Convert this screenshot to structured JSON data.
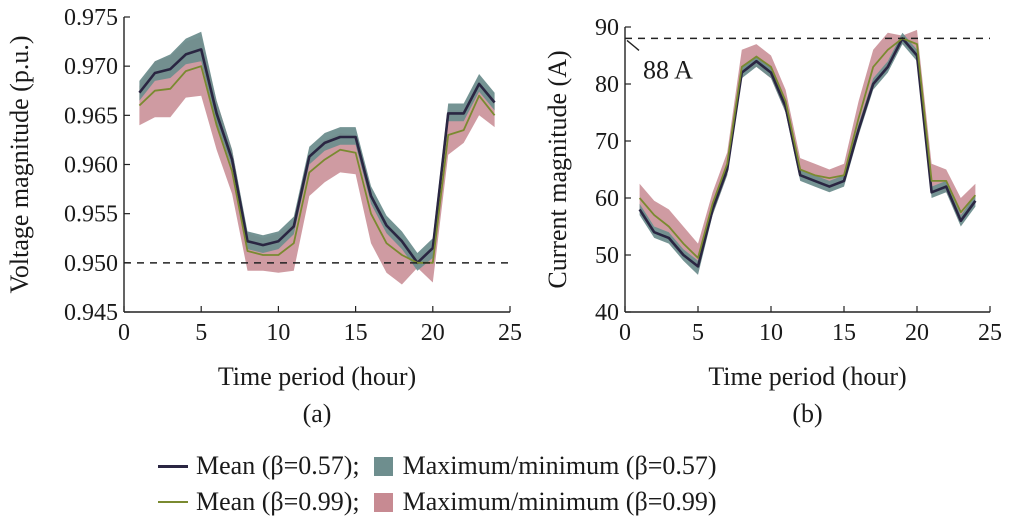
{
  "legend": {
    "mean_057": "Mean (β=0.57);",
    "range_057": "Maximum/minimum (β=0.57)",
    "mean_099": "Mean (β=0.99);",
    "range_099": "Maximum/minimum (β=0.99)"
  },
  "colors": {
    "mean_057": "#2a2642",
    "range_057": "#6e8e8e",
    "mean_099": "#7a8a30",
    "range_099": "#c78a92"
  },
  "chart_data": [
    {
      "type": "line",
      "panel_label": "(a)",
      "xlabel": "Time period (hour)",
      "ylabel": "Voltage magnitude (p.u.)",
      "xlim": [
        0,
        25
      ],
      "ylim": [
        0.945,
        0.975
      ],
      "xticks": [
        0,
        5,
        10,
        15,
        20,
        25
      ],
      "yticks": [
        "0.945",
        "0.950",
        "0.955",
        "0.960",
        "0.965",
        "0.970",
        "0.975"
      ],
      "reference_line": {
        "y": 0.95,
        "style": "dashed"
      },
      "x": [
        1,
        2,
        3,
        4,
        5,
        6,
        7,
        8,
        9,
        10,
        11,
        12,
        13,
        14,
        15,
        16,
        17,
        18,
        19,
        20,
        21,
        22,
        23,
        24
      ],
      "series": [
        {
          "name": "Mean (β=0.57)",
          "values": [
            0.9673,
            0.9693,
            0.9697,
            0.9712,
            0.9717,
            0.9652,
            0.9605,
            0.9522,
            0.9518,
            0.9522,
            0.9537,
            0.9608,
            0.9622,
            0.9628,
            0.9628,
            0.9568,
            0.9538,
            0.9522,
            0.95,
            0.9515,
            0.9652,
            0.9652,
            0.9682,
            0.9663
          ]
        },
        {
          "name": "Maximum/minimum (β=0.57)",
          "upper": [
            0.9685,
            0.9705,
            0.9712,
            0.9728,
            0.9735,
            0.9665,
            0.9615,
            0.9532,
            0.9528,
            0.9532,
            0.9547,
            0.9618,
            0.9632,
            0.9638,
            0.9638,
            0.9578,
            0.9548,
            0.9532,
            0.951,
            0.9525,
            0.9662,
            0.9662,
            0.9692,
            0.9673
          ],
          "lower": [
            0.9665,
            0.9685,
            0.9688,
            0.9702,
            0.9705,
            0.9642,
            0.9597,
            0.9514,
            0.951,
            0.9514,
            0.9529,
            0.96,
            0.9614,
            0.962,
            0.962,
            0.956,
            0.953,
            0.9514,
            0.9492,
            0.9505,
            0.9644,
            0.9644,
            0.9674,
            0.9655
          ]
        },
        {
          "name": "Mean (β=0.99)",
          "values": [
            0.966,
            0.9675,
            0.9677,
            0.9695,
            0.97,
            0.964,
            0.9593,
            0.9512,
            0.9508,
            0.9508,
            0.952,
            0.9592,
            0.9605,
            0.9615,
            0.9612,
            0.955,
            0.952,
            0.9508,
            0.95,
            0.95,
            0.963,
            0.9635,
            0.967,
            0.965
          ]
        },
        {
          "name": "Maximum/minimum (β=0.99)",
          "upper": [
            0.968,
            0.9705,
            0.971,
            0.9725,
            0.973,
            0.9665,
            0.9615,
            0.953,
            0.9525,
            0.953,
            0.954,
            0.961,
            0.9625,
            0.9632,
            0.963,
            0.957,
            0.954,
            0.9525,
            0.9505,
            0.9515,
            0.9655,
            0.9655,
            0.968,
            0.9665
          ],
          "lower": [
            0.964,
            0.9648,
            0.9648,
            0.9668,
            0.967,
            0.9615,
            0.957,
            0.9492,
            0.9492,
            0.949,
            0.9492,
            0.9568,
            0.9582,
            0.9592,
            0.959,
            0.952,
            0.949,
            0.9478,
            0.9495,
            0.948,
            0.961,
            0.9622,
            0.965,
            0.9638
          ]
        }
      ]
    },
    {
      "type": "line",
      "panel_label": "(b)",
      "xlabel": "Time period (hour)",
      "ylabel": "Current magnitude (A)",
      "xlim": [
        0,
        25
      ],
      "ylim": [
        40,
        90
      ],
      "xticks": [
        0,
        5,
        10,
        15,
        20,
        25
      ],
      "yticks": [
        "40",
        "50",
        "60",
        "70",
        "80",
        "90"
      ],
      "reference_line": {
        "y": 88,
        "style": "dashed",
        "label": "88 A"
      },
      "x": [
        1,
        2,
        3,
        4,
        5,
        6,
        7,
        8,
        9,
        10,
        11,
        12,
        13,
        14,
        15,
        16,
        17,
        18,
        19,
        20,
        21,
        22,
        23,
        24
      ],
      "series": [
        {
          "name": "Mean (β=0.57)",
          "values": [
            58,
            54,
            53,
            50,
            48,
            58,
            65,
            82,
            84,
            82,
            76,
            64,
            63,
            62,
            63,
            72,
            80,
            83,
            88,
            85,
            61,
            62,
            56,
            59.5
          ]
        },
        {
          "name": "Maximum/minimum (β=0.57)",
          "upper": [
            59,
            55,
            54,
            51,
            49,
            59,
            66,
            83,
            85,
            83,
            77,
            65,
            64,
            63,
            64,
            73,
            81,
            84,
            89,
            86,
            62,
            63,
            57,
            60.5
          ],
          "lower": [
            57,
            53,
            52,
            49,
            46.5,
            57,
            64,
            81,
            83,
            81,
            75,
            63,
            62,
            61,
            62,
            71,
            79,
            82,
            87,
            84,
            60,
            61,
            55,
            58.5
          ]
        },
        {
          "name": "Mean (β=0.99)",
          "values": [
            60,
            57,
            55,
            52,
            49.5,
            59,
            66,
            83,
            84.8,
            83,
            77,
            65,
            64,
            63.5,
            64,
            74,
            83,
            86,
            88,
            87,
            63,
            63,
            57.5,
            60.5
          ]
        },
        {
          "name": "Maximum/minimum (β=0.99)",
          "upper": [
            62.5,
            59.5,
            58,
            55,
            52,
            61,
            68,
            86,
            87,
            85,
            79,
            67,
            66,
            65,
            66,
            77,
            86,
            89,
            88.5,
            89.5,
            66,
            65,
            60,
            62.5
          ],
          "lower": [
            58,
            55,
            53,
            50,
            47.5,
            57,
            64,
            82,
            83,
            81,
            75,
            64,
            63,
            62,
            63,
            71,
            80,
            83,
            87,
            85,
            61,
            61,
            56,
            59
          ]
        }
      ]
    }
  ]
}
